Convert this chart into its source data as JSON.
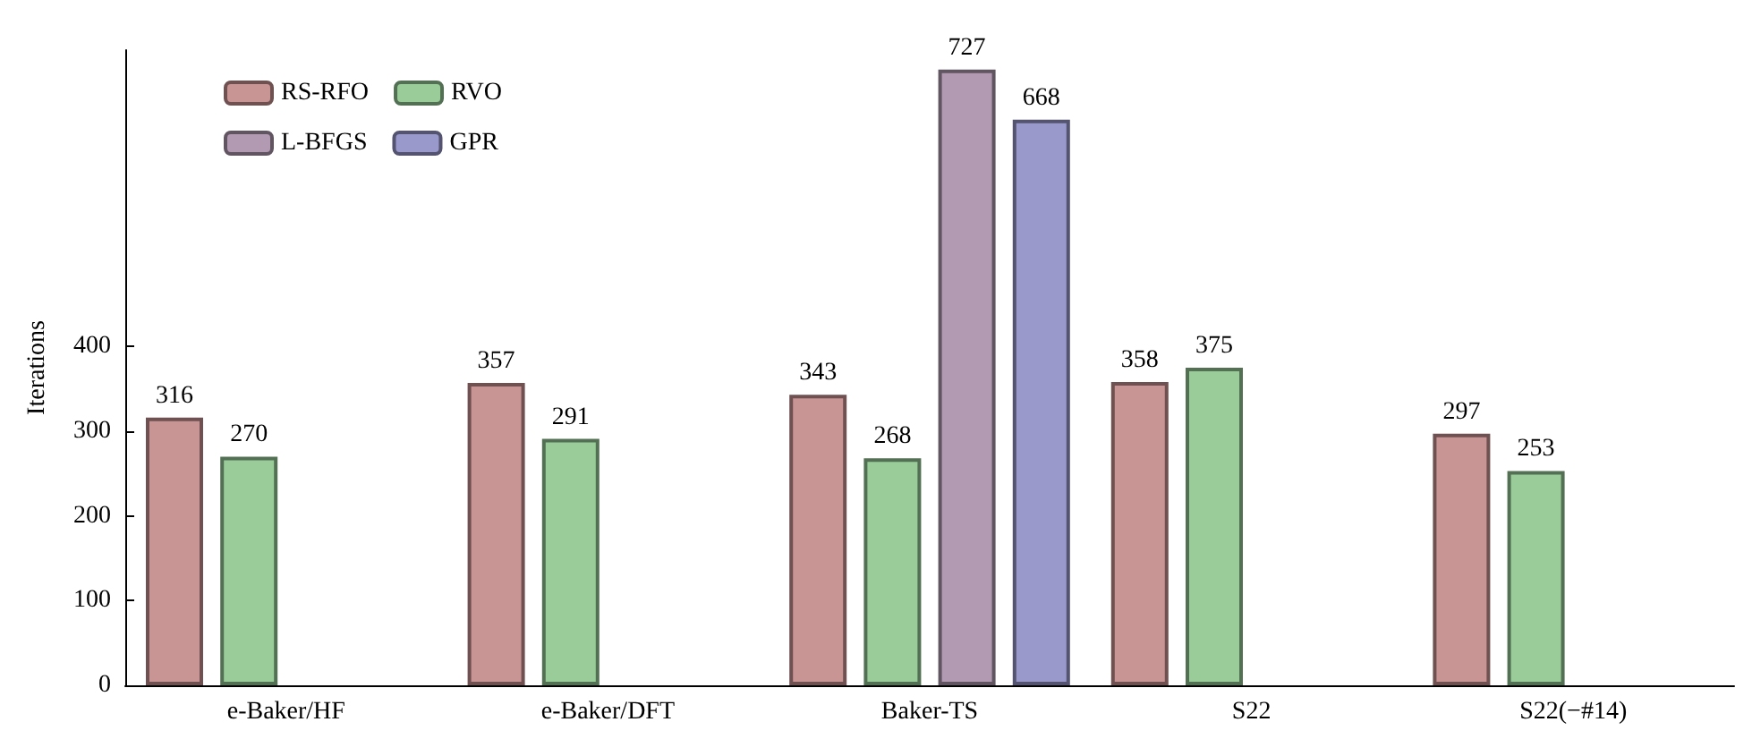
{
  "chart_data": {
    "type": "bar",
    "ylabel": "Iterations",
    "categories": [
      "e-Baker/HF",
      "e-Baker/DFT",
      "Baker-TS",
      "S22",
      "S22(−#14)"
    ],
    "series": [
      {
        "name": "RS-RFO",
        "color": "#c99494",
        "values": [
          316,
          357,
          343,
          358,
          297
        ]
      },
      {
        "name": "RVO",
        "color": "#99cc99",
        "values": [
          270,
          291,
          268,
          375,
          253
        ]
      },
      {
        "name": "L-BFGS",
        "color": "#b39ab3",
        "values": [
          null,
          null,
          727,
          null,
          null
        ]
      },
      {
        "name": "GPR",
        "color": "#9999cc",
        "values": [
          null,
          null,
          668,
          null,
          null
        ]
      }
    ],
    "ylim": [
      0,
      750
    ],
    "yticks": [
      0,
      100,
      200,
      300,
      400
    ],
    "data_labels": true,
    "grid": false,
    "legend": "top left"
  }
}
